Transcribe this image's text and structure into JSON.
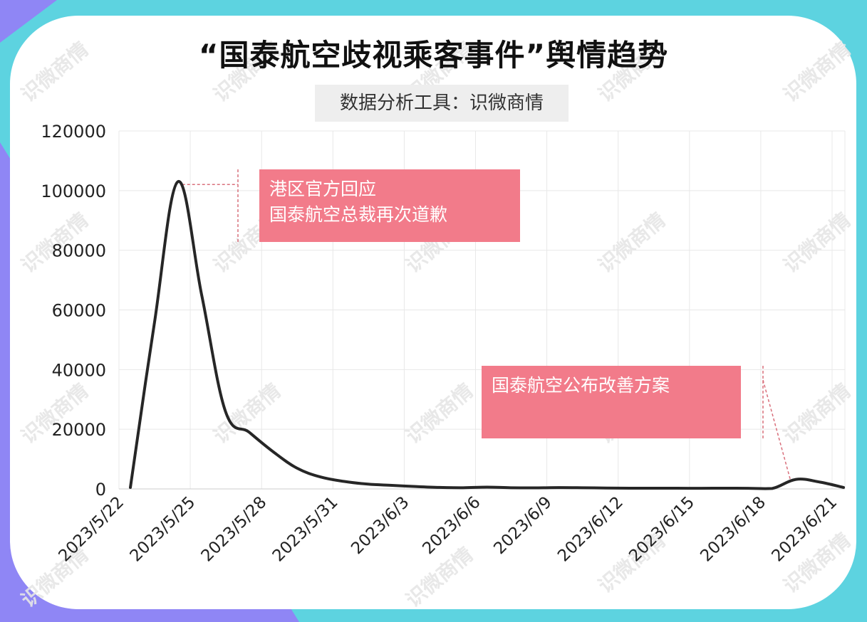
{
  "title": "“国泰航空歧视乘客事件”舆情趋势",
  "subtitle": "数据分析工具：识微商情",
  "watermark": "识微商情",
  "colors": {
    "background_left": "#8f86f5",
    "background_right": "#5dd3e0",
    "line": "#262626",
    "annotation_box": "#f27b8a",
    "annotation_guide": "#d9707c",
    "grid": "#e8e8e8"
  },
  "chart_data": {
    "type": "line",
    "title": "“国泰航空歧视乘客事件”舆情趋势",
    "xlabel": "",
    "ylabel": "",
    "ylim": [
      0,
      120000
    ],
    "yticks": [
      0,
      20000,
      40000,
      60000,
      80000,
      100000,
      120000
    ],
    "x_tick_labels": [
      "2023/5/22",
      "2023/5/25",
      "2023/5/28",
      "2023/5/31",
      "2023/6/3",
      "2023/6/6",
      "2023/6/9",
      "2023/6/12",
      "2023/6/15",
      "2023/6/18",
      "2023/6/21"
    ],
    "grid": true,
    "x": [
      "2023/5/22",
      "2023/5/23",
      "2023/5/24",
      "2023/5/25",
      "2023/5/26",
      "2023/5/27",
      "2023/5/28",
      "2023/5/29",
      "2023/5/30",
      "2023/5/31",
      "2023/6/1",
      "2023/6/2",
      "2023/6/3",
      "2023/6/4",
      "2023/6/5",
      "2023/6/6",
      "2023/6/7",
      "2023/6/8",
      "2023/6/9",
      "2023/6/10",
      "2023/6/11",
      "2023/6/12",
      "2023/6/13",
      "2023/6/14",
      "2023/6/15",
      "2023/6/16",
      "2023/6/17",
      "2023/6/18",
      "2023/6/19",
      "2023/6/20",
      "2023/6/21"
    ],
    "values": [
      500,
      55000,
      103000,
      65000,
      26000,
      19000,
      12500,
      7000,
      4000,
      2500,
      1600,
      1200,
      800,
      500,
      400,
      600,
      400,
      350,
      450,
      400,
      300,
      250,
      250,
      250,
      200,
      250,
      200,
      150,
      3200,
      2300,
      500
    ],
    "annotations": [
      {
        "lines": [
          "港区官方回应",
          "国泰航空总裁再次道歉"
        ],
        "date": "2023/5/24"
      },
      {
        "lines": [
          "国泰航空公布改善方案"
        ],
        "date": "2023/6/19"
      }
    ]
  }
}
